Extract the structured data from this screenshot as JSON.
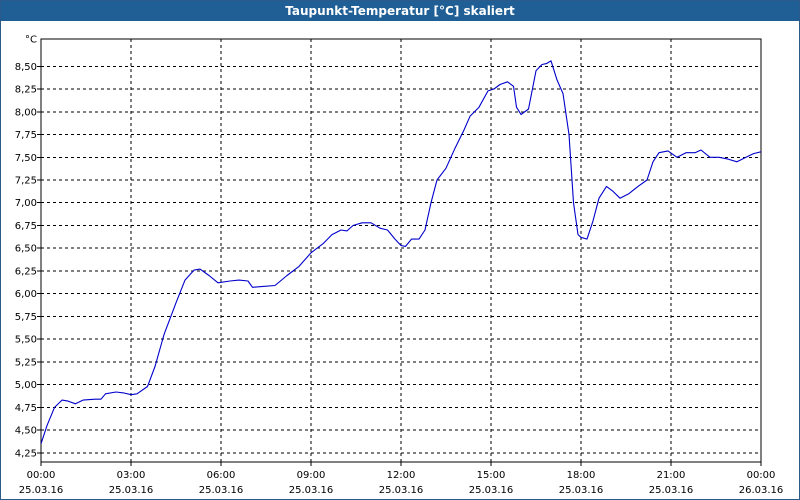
{
  "window": {
    "title": "Taupunkt-Temperatur [°C] skaliert"
  },
  "colors": {
    "title_bar": "#1f5f95",
    "line": "#0000cc",
    "grid": "#000000"
  },
  "chart_data": {
    "type": "line",
    "title": "Taupunkt-Temperatur [°C] skaliert",
    "unit_label": "°C",
    "xlabel": "",
    "ylabel": "",
    "ylim": [
      4.15,
      8.8
    ],
    "xlim_hours": [
      0,
      24
    ],
    "grid": true,
    "y_ticks": [
      {
        "value": 4.25,
        "label": "4,25"
      },
      {
        "value": 4.5,
        "label": "4,50"
      },
      {
        "value": 4.75,
        "label": "4,75"
      },
      {
        "value": 5.0,
        "label": "5,00"
      },
      {
        "value": 5.25,
        "label": "5,25"
      },
      {
        "value": 5.5,
        "label": "5,50"
      },
      {
        "value": 5.75,
        "label": "5,75"
      },
      {
        "value": 6.0,
        "label": "6,00"
      },
      {
        "value": 6.25,
        "label": "6,25"
      },
      {
        "value": 6.5,
        "label": "6,50"
      },
      {
        "value": 6.75,
        "label": "6,75"
      },
      {
        "value": 7.0,
        "label": "7,00"
      },
      {
        "value": 7.25,
        "label": "7,25"
      },
      {
        "value": 7.5,
        "label": "7,50"
      },
      {
        "value": 7.75,
        "label": "7,75"
      },
      {
        "value": 8.0,
        "label": "8,00"
      },
      {
        "value": 8.25,
        "label": "8,25"
      },
      {
        "value": 8.5,
        "label": "8,50"
      }
    ],
    "x_ticks": [
      {
        "hour": 0,
        "time": "00:00",
        "date": "25.03.16"
      },
      {
        "hour": 3,
        "time": "03:00",
        "date": "25.03.16"
      },
      {
        "hour": 6,
        "time": "06:00",
        "date": "25.03.16"
      },
      {
        "hour": 9,
        "time": "09:00",
        "date": "25.03.16"
      },
      {
        "hour": 12,
        "time": "12:00",
        "date": "25.03.16"
      },
      {
        "hour": 15,
        "time": "15:00",
        "date": "25.03.16"
      },
      {
        "hour": 18,
        "time": "18:00",
        "date": "25.03.16"
      },
      {
        "hour": 21,
        "time": "21:00",
        "date": "25.03.16"
      },
      {
        "hour": 24,
        "time": "00:00",
        "date": "26.03.16"
      }
    ],
    "series": [
      {
        "points": [
          [
            0.0,
            4.35
          ],
          [
            0.2,
            4.55
          ],
          [
            0.45,
            4.75
          ],
          [
            0.7,
            4.83
          ],
          [
            0.9,
            4.82
          ],
          [
            1.15,
            4.79
          ],
          [
            1.4,
            4.83
          ],
          [
            1.8,
            4.84
          ],
          [
            2.0,
            4.84
          ],
          [
            2.15,
            4.9
          ],
          [
            2.5,
            4.92
          ],
          [
            2.75,
            4.91
          ],
          [
            3.0,
            4.89
          ],
          [
            3.2,
            4.9
          ],
          [
            3.55,
            4.98
          ],
          [
            3.8,
            5.2
          ],
          [
            4.1,
            5.55
          ],
          [
            4.5,
            5.9
          ],
          [
            4.8,
            6.15
          ],
          [
            5.1,
            6.26
          ],
          [
            5.3,
            6.27
          ],
          [
            5.6,
            6.2
          ],
          [
            5.9,
            6.12
          ],
          [
            6.3,
            6.14
          ],
          [
            6.6,
            6.15
          ],
          [
            6.9,
            6.14
          ],
          [
            7.05,
            6.07
          ],
          [
            7.4,
            6.08
          ],
          [
            7.8,
            6.09
          ],
          [
            8.2,
            6.2
          ],
          [
            8.6,
            6.3
          ],
          [
            9.0,
            6.45
          ],
          [
            9.4,
            6.55
          ],
          [
            9.7,
            6.65
          ],
          [
            10.0,
            6.7
          ],
          [
            10.2,
            6.69
          ],
          [
            10.4,
            6.75
          ],
          [
            10.7,
            6.78
          ],
          [
            11.0,
            6.78
          ],
          [
            11.3,
            6.72
          ],
          [
            11.55,
            6.7
          ],
          [
            11.8,
            6.6
          ],
          [
            12.0,
            6.53
          ],
          [
            12.15,
            6.52
          ],
          [
            12.35,
            6.6
          ],
          [
            12.6,
            6.6
          ],
          [
            12.8,
            6.7
          ],
          [
            13.0,
            7.0
          ],
          [
            13.2,
            7.25
          ],
          [
            13.5,
            7.38
          ],
          [
            13.8,
            7.6
          ],
          [
            14.1,
            7.8
          ],
          [
            14.3,
            7.95
          ],
          [
            14.6,
            8.05
          ],
          [
            14.9,
            8.23
          ],
          [
            15.1,
            8.25
          ],
          [
            15.3,
            8.3
          ],
          [
            15.55,
            8.33
          ],
          [
            15.75,
            8.28
          ],
          [
            15.85,
            8.05
          ],
          [
            16.0,
            7.97
          ],
          [
            16.25,
            8.03
          ],
          [
            16.5,
            8.45
          ],
          [
            16.7,
            8.52
          ],
          [
            16.85,
            8.53
          ],
          [
            17.0,
            8.56
          ],
          [
            17.2,
            8.35
          ],
          [
            17.4,
            8.2
          ],
          [
            17.6,
            7.75
          ],
          [
            17.75,
            7.0
          ],
          [
            17.9,
            6.65
          ],
          [
            18.0,
            6.62
          ],
          [
            18.2,
            6.6
          ],
          [
            18.4,
            6.8
          ],
          [
            18.6,
            7.05
          ],
          [
            18.85,
            7.18
          ],
          [
            19.05,
            7.13
          ],
          [
            19.3,
            7.05
          ],
          [
            19.6,
            7.1
          ],
          [
            19.9,
            7.18
          ],
          [
            20.2,
            7.25
          ],
          [
            20.4,
            7.45
          ],
          [
            20.6,
            7.55
          ],
          [
            20.9,
            7.57
          ],
          [
            21.2,
            7.5
          ],
          [
            21.5,
            7.55
          ],
          [
            21.8,
            7.55
          ],
          [
            22.0,
            7.58
          ],
          [
            22.3,
            7.5
          ],
          [
            22.6,
            7.5
          ],
          [
            22.9,
            7.48
          ],
          [
            23.2,
            7.45
          ],
          [
            23.5,
            7.5
          ],
          [
            23.75,
            7.54
          ],
          [
            24.0,
            7.56
          ],
          [
            24.2,
            7.55
          ]
        ]
      }
    ]
  }
}
